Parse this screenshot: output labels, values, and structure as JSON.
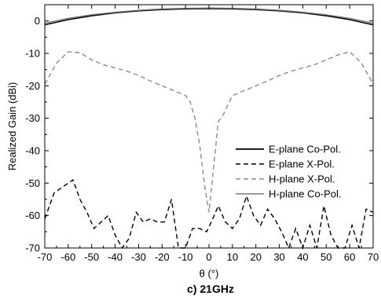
{
  "chart_data": {
    "type": "line",
    "caption": "c) 21GHz",
    "xlabel": "θ (°)",
    "ylabel": "Realized Gain (dBi)",
    "xlim": [
      -70,
      70
    ],
    "ylim": [
      -70,
      5
    ],
    "xticks": [
      -70,
      -60,
      -50,
      -40,
      -30,
      -20,
      -10,
      0,
      10,
      20,
      30,
      40,
      50,
      60,
      70
    ],
    "yticks": [
      0,
      -10,
      -20,
      -30,
      -40,
      -50,
      -60,
      -70
    ],
    "grid": false,
    "legend_position": "right",
    "series": [
      {
        "name": "E-plane Co-Pol.",
        "color": "#000000",
        "dash": "solid",
        "x": [
          -70,
          -60,
          -50,
          -40,
          -30,
          -20,
          -10,
          0,
          10,
          20,
          30,
          40,
          50,
          60,
          70
        ],
        "y": [
          -1.2,
          0.4,
          1.6,
          2.5,
          3.1,
          3.5,
          3.7,
          3.8,
          3.7,
          3.5,
          3.1,
          2.5,
          1.6,
          0.4,
          -1.2
        ]
      },
      {
        "name": "E-plane X-Pol.",
        "color": "#000000",
        "dash": "dashed",
        "x": [
          -70,
          -66,
          -62,
          -58,
          -55,
          -52,
          -49,
          -46,
          -43,
          -40,
          -37,
          -34,
          -31,
          -28,
          -25,
          -22,
          -19,
          -16,
          -13,
          -10,
          -7,
          -4,
          -1,
          1,
          4,
          7,
          10,
          13,
          16,
          19,
          22,
          25,
          28,
          31,
          34,
          37,
          40,
          43,
          46,
          49,
          52,
          55,
          58,
          61,
          64,
          67,
          70
        ],
        "y": [
          -61,
          -53,
          -51,
          -49,
          -55,
          -59,
          -64,
          -62,
          -60,
          -66,
          -70,
          -67,
          -59,
          -62,
          -61,
          -62,
          -62,
          -55,
          -70,
          -70,
          -64,
          -64,
          -65,
          -62,
          -57,
          -62,
          -64,
          -61,
          -54,
          -60,
          -63,
          -58,
          -61,
          -65,
          -70,
          -64,
          -70,
          -63,
          -70,
          -57,
          -66,
          -70,
          -70,
          -63,
          -70,
          -58,
          -59
        ]
      },
      {
        "name": "H-plane X-Pol.",
        "color": "#8c8c8c",
        "dash": "dashed",
        "x": [
          -70,
          -65,
          -60,
          -55,
          -50,
          -45,
          -40,
          -35,
          -30,
          -25,
          -20,
          -15,
          -10,
          -8,
          -6,
          -4,
          -2,
          0,
          2,
          4,
          6,
          8,
          10,
          15,
          20,
          25,
          30,
          35,
          40,
          45,
          50,
          55,
          60,
          65,
          70
        ],
        "y": [
          -19.5,
          -13,
          -9.5,
          -9.8,
          -12,
          -13.5,
          -14.5,
          -15.5,
          -16.8,
          -18.5,
          -20,
          -21.5,
          -23,
          -25,
          -30,
          -38,
          -50,
          -59,
          -45,
          -31,
          -29,
          -26,
          -23,
          -21.5,
          -20,
          -18.5,
          -16.8,
          -15.5,
          -14.5,
          -13.5,
          -12,
          -10.5,
          -9.5,
          -13,
          -19.5
        ]
      },
      {
        "name": "H-plane Co-Pol.",
        "color": "#7a7a7a",
        "dash": "solid",
        "x": [
          -70,
          -60,
          -50,
          -40,
          -30,
          -20,
          -10,
          0,
          10,
          20,
          30,
          40,
          50,
          60,
          70
        ],
        "y": [
          -0.7,
          0.8,
          1.9,
          2.7,
          3.3,
          3.7,
          3.9,
          4.0,
          3.9,
          3.7,
          3.3,
          2.7,
          1.9,
          0.8,
          -0.7
        ]
      }
    ]
  }
}
